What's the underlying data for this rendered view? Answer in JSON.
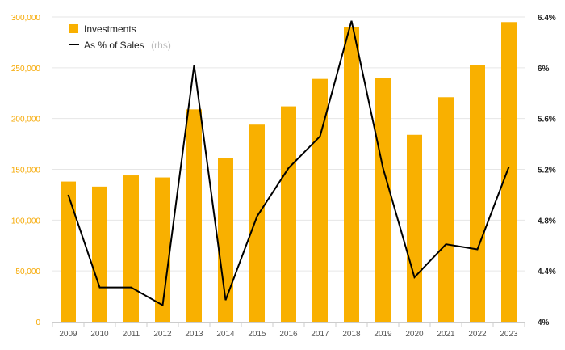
{
  "chart_data": {
    "type": "bar",
    "categories": [
      "2009",
      "2010",
      "2011",
      "2012",
      "2013",
      "2014",
      "2015",
      "2016",
      "2017",
      "2018",
      "2019",
      "2020",
      "2021",
      "2022",
      "2023"
    ],
    "series": [
      {
        "name": "Investments",
        "type": "bar",
        "axis": "left",
        "color": "#f9b000",
        "values": [
          138000,
          133000,
          144000,
          142000,
          209000,
          161000,
          194000,
          212000,
          239000,
          290000,
          240000,
          184000,
          221000,
          253000,
          295000
        ]
      },
      {
        "name": "As % of Sales",
        "name_note": "(rhs)",
        "type": "line",
        "axis": "right",
        "color": "#000000",
        "values": [
          5.0,
          4.27,
          4.27,
          4.13,
          6.02,
          4.17,
          4.83,
          5.21,
          5.46,
          6.37,
          5.21,
          4.35,
          4.61,
          4.57,
          5.22
        ]
      }
    ],
    "y_left": {
      "ylim": [
        0,
        300000
      ],
      "ticks": [
        0,
        50000,
        100000,
        150000,
        200000,
        250000,
        300000
      ],
      "tick_labels": [
        "0",
        "50,000",
        "100,000",
        "150,000",
        "200,000",
        "250,000",
        "300,000"
      ],
      "color": "#f6a800"
    },
    "y_right": {
      "ylim": [
        4.0,
        6.4
      ],
      "ticks": [
        4.0,
        4.4,
        4.8,
        5.2,
        5.6,
        6.0,
        6.4
      ],
      "tick_labels": [
        "4%",
        "4.4%",
        "4.8%",
        "5.2%",
        "5.6%",
        "6%",
        "6.4%"
      ]
    },
    "grid": true,
    "legend_position": "top-left"
  }
}
